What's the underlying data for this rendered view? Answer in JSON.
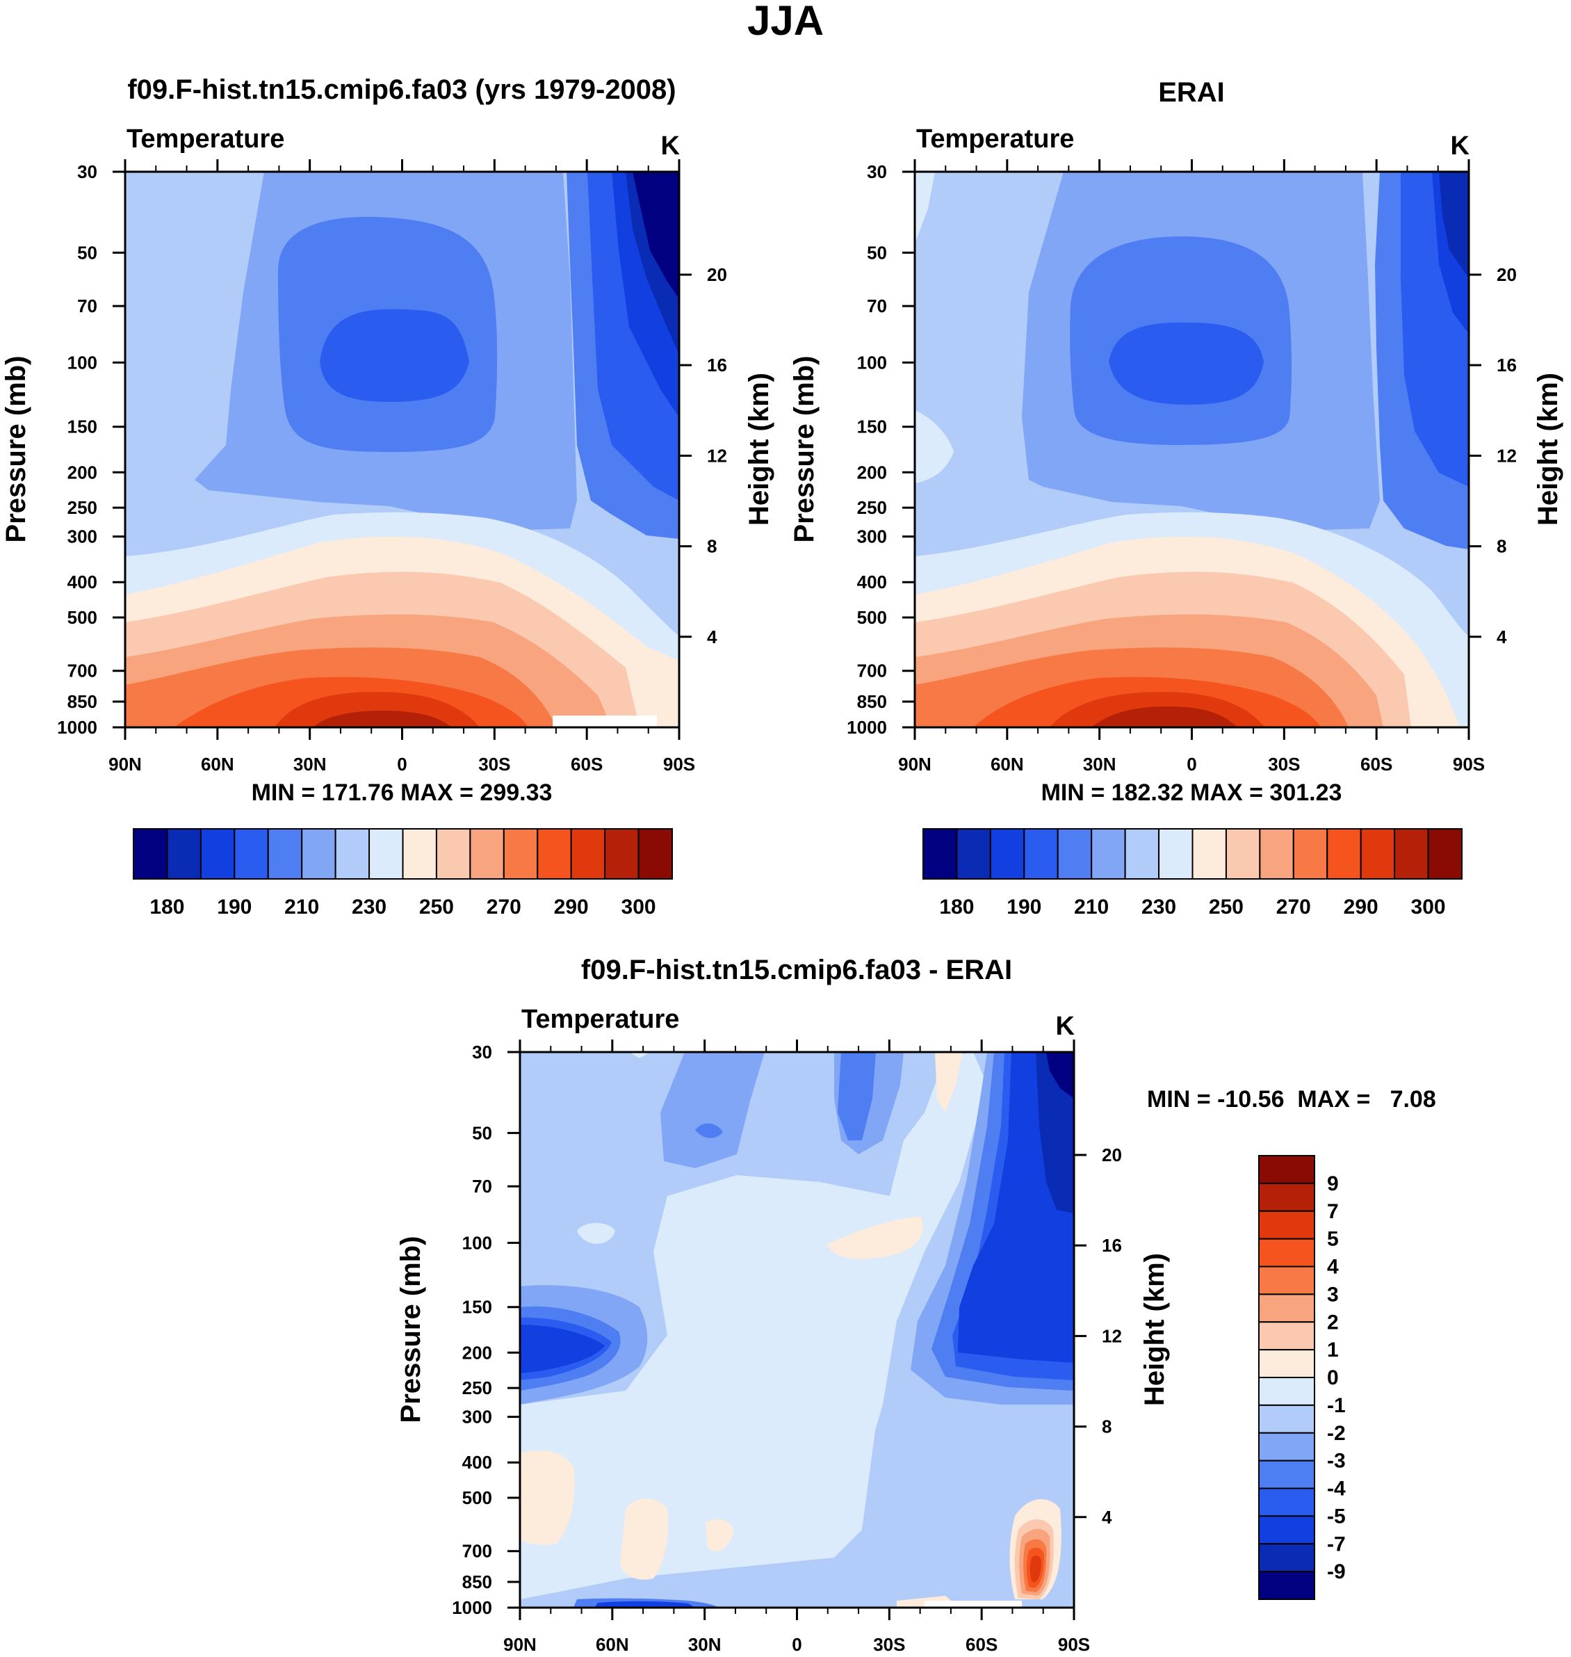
{
  "figure": {
    "season_title": "JJA"
  },
  "chart_data": [
    {
      "type": "heatmap",
      "title": "f09.F-hist.tn15.cmip6.fa03 (yrs 1979-2008)",
      "variable": "Temperature",
      "units": "K",
      "xlabel": "",
      "ylabel": "Pressure (mb)",
      "y2label": "Height (km)",
      "x_ticks": [
        "90N",
        "60N",
        "30N",
        "0",
        "30S",
        "60S",
        "90S"
      ],
      "x_range": [
        90,
        -90
      ],
      "y_ticks": [
        30,
        50,
        70,
        100,
        150,
        200,
        250,
        300,
        400,
        500,
        700,
        850,
        1000
      ],
      "y_range": [
        30,
        1000
      ],
      "y2_ticks": [
        20,
        16,
        12,
        8,
        4
      ],
      "stats_text": "MIN = 171.76  MAX = 299.33",
      "min": 171.76,
      "max": 299.33,
      "contour_levels": [
        180,
        185,
        190,
        200,
        210,
        220,
        230,
        240,
        250,
        260,
        270,
        280,
        290,
        295,
        300
      ],
      "colorbar_labels": [
        "180",
        "190",
        "210",
        "230",
        "250",
        "270",
        "290",
        "300"
      ],
      "colorbar_colors": [
        "#000080",
        "#0A2CB5",
        "#1240E0",
        "#2A5CF0",
        "#4F7EF2",
        "#81A6F6",
        "#B1CCF9",
        "#DCEBFB",
        "#FDEBDB",
        "#FBC9AF",
        "#F8A57F",
        "#F77A46",
        "#F5541F",
        "#E0390E",
        "#B42008",
        "#8A0A04"
      ]
    },
    {
      "type": "heatmap",
      "title": "ERAI",
      "variable": "Temperature",
      "units": "K",
      "xlabel": "",
      "ylabel": "Pressure (mb)",
      "y2label": "Height (km)",
      "x_ticks": [
        "90N",
        "60N",
        "30N",
        "0",
        "30S",
        "60S",
        "90S"
      ],
      "x_range": [
        90,
        -90
      ],
      "y_ticks": [
        30,
        50,
        70,
        100,
        150,
        200,
        250,
        300,
        400,
        500,
        700,
        850,
        1000
      ],
      "y_range": [
        30,
        1000
      ],
      "y2_ticks": [
        20,
        16,
        12,
        8,
        4
      ],
      "stats_text": "MIN = 182.32  MAX = 301.23",
      "min": 182.32,
      "max": 301.23,
      "contour_levels": [
        180,
        185,
        190,
        200,
        210,
        220,
        230,
        240,
        250,
        260,
        270,
        280,
        290,
        295,
        300
      ],
      "colorbar_labels": [
        "180",
        "190",
        "210",
        "230",
        "250",
        "270",
        "290",
        "300"
      ],
      "colorbar_colors": [
        "#000080",
        "#0A2CB5",
        "#1240E0",
        "#2A5CF0",
        "#4F7EF2",
        "#81A6F6",
        "#B1CCF9",
        "#DCEBFB",
        "#FDEBDB",
        "#FBC9AF",
        "#F8A57F",
        "#F77A46",
        "#F5541F",
        "#E0390E",
        "#B42008",
        "#8A0A04"
      ]
    },
    {
      "type": "heatmap",
      "title": "f09.F-hist.tn15.cmip6.fa03 - ERAI",
      "variable": "Temperature",
      "units": "K",
      "xlabel": "",
      "ylabel": "Pressure (mb)",
      "y2label": "Height (km)",
      "x_ticks": [
        "90N",
        "60N",
        "30N",
        "0",
        "30S",
        "60S",
        "90S"
      ],
      "x_range": [
        90,
        -90
      ],
      "y_ticks": [
        30,
        50,
        70,
        100,
        150,
        200,
        250,
        300,
        400,
        500,
        700,
        850,
        1000
      ],
      "y_range": [
        30,
        1000
      ],
      "y2_ticks": [
        20,
        16,
        12,
        8,
        4
      ],
      "stats_text": "MIN = -10.56  MAX =   7.08",
      "min": -10.56,
      "max": 7.08,
      "colorbar_labels": [
        "9",
        "7",
        "5",
        "4",
        "3",
        "2",
        "1",
        "0",
        "-1",
        "-2",
        "-3",
        "-4",
        "-5",
        "-7",
        "-9"
      ],
      "colorbar_colors": [
        "#8A0A04",
        "#B42008",
        "#E0390E",
        "#F5541F",
        "#F77A46",
        "#F8A57F",
        "#FBC9AF",
        "#FDEBDB",
        "#DCEBFB",
        "#B1CCF9",
        "#81A6F6",
        "#4F7EF2",
        "#2A5CF0",
        "#1240E0",
        "#0A2CB5",
        "#000080"
      ]
    }
  ]
}
